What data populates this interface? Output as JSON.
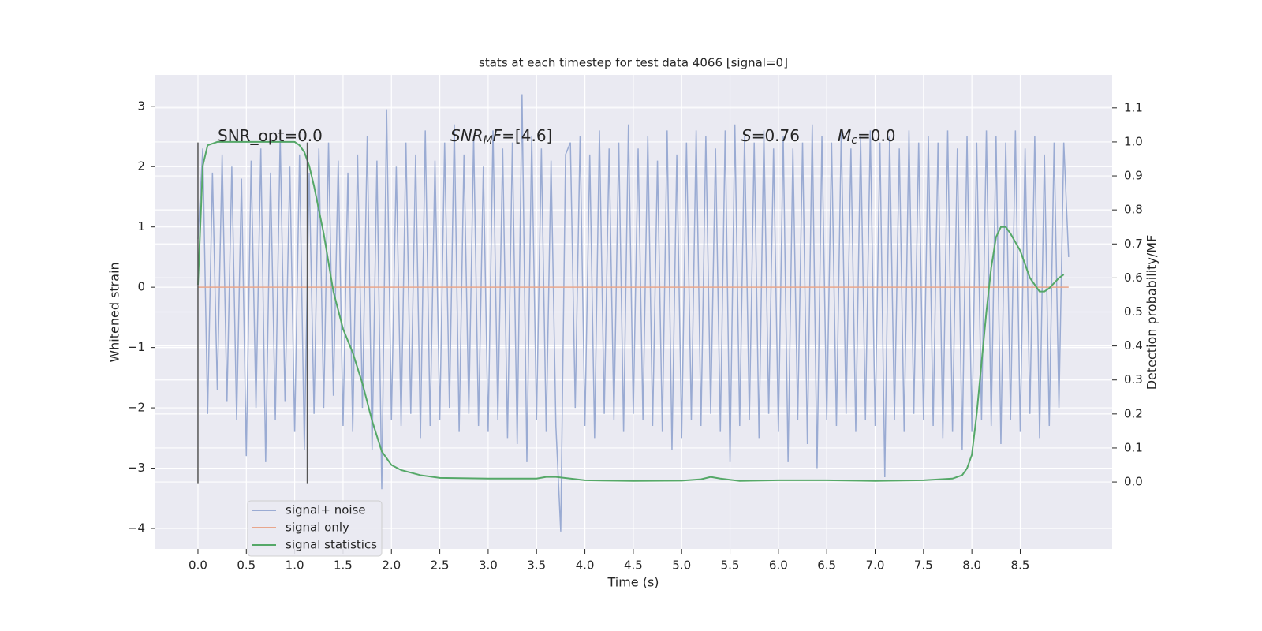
{
  "chart_data": {
    "type": "line",
    "title": "stats at each timestep for test data 4066 [signal=0]",
    "x_label": "Time (s)",
    "y_label": "Whitened strain",
    "y2_label": "Detection probability/MF",
    "xlim": [
      -0.44,
      9.45
    ],
    "xticks": [
      {
        "value": 0,
        "label": "0.0"
      },
      0.5,
      {
        "value": 1,
        "label": "1.0"
      },
      1.5,
      {
        "value": 2,
        "label": "2.0"
      },
      2.5,
      {
        "value": 3,
        "label": "3.0"
      },
      3.5,
      {
        "value": 4,
        "label": "4.0"
      },
      4.5,
      {
        "value": 5,
        "label": "5.0"
      },
      5.5,
      {
        "value": 6,
        "label": "6.0"
      },
      6.5,
      {
        "value": 7,
        "label": "7.0"
      },
      7.5,
      {
        "value": 8,
        "label": "8.0"
      },
      8.5
    ],
    "ylim": [
      -4.34,
      3.52
    ],
    "yticks": [
      {
        "value": -4,
        "label": "−4"
      },
      {
        "value": -3,
        "label": "−3"
      },
      {
        "value": -2,
        "label": "−2"
      },
      {
        "value": -1,
        "label": "−1"
      },
      0,
      1,
      2,
      3
    ],
    "y2lim": [
      -0.197,
      1.197
    ],
    "y2ticks": [
      {
        "value": 0,
        "label": "0.0"
      },
      0.1,
      0.2,
      0.3,
      0.4,
      0.5,
      0.6,
      0.7,
      0.8,
      0.9,
      {
        "value": 1,
        "label": "1.0"
      },
      1.1
    ],
    "grid": true,
    "legend": "lower left",
    "annotations": [
      [
        "SNR_opt=0.0"
      ],
      [
        "SNR",
        "M",
        "F",
        "=[4.6]"
      ],
      [
        "S",
        "=0.76"
      ],
      [
        "M",
        "c",
        "=0.0"
      ]
    ],
    "vlines": [
      0,
      1.13
    ],
    "vline_ylim": [
      -3.25,
      2.4
    ],
    "series": [
      {
        "name": "signal+ noise",
        "color": "#9aabd3",
        "x": [
          0,
          0.05,
          0.1,
          0.15,
          0.2,
          0.25,
          0.3,
          0.35,
          0.4,
          0.45,
          0.5,
          0.55,
          0.6,
          0.65,
          0.7,
          0.75,
          0.8,
          0.85,
          0.9,
          0.95,
          1,
          1.05,
          1.1,
          1.15,
          1.2,
          1.25,
          1.3,
          1.35,
          1.4,
          1.45,
          1.5,
          1.55,
          1.6,
          1.65,
          1.7,
          1.75,
          1.8,
          1.85,
          1.9,
          1.95,
          2,
          2.05,
          2.1,
          2.15,
          2.2,
          2.25,
          2.3,
          2.35,
          2.4,
          2.45,
          2.5,
          2.55,
          2.6,
          2.65,
          2.7,
          2.75,
          2.8,
          2.85,
          2.9,
          2.95,
          3,
          3.05,
          3.1,
          3.15,
          3.2,
          3.25,
          3.3,
          3.35,
          3.4,
          3.45,
          3.5,
          3.55,
          3.6,
          3.65,
          3.7,
          3.75,
          3.8,
          3.85,
          3.9,
          3.95,
          4,
          4.05,
          4.1,
          4.15,
          4.2,
          4.25,
          4.3,
          4.35,
          4.4,
          4.45,
          4.5,
          4.55,
          4.6,
          4.65,
          4.7,
          4.75,
          4.8,
          4.85,
          4.9,
          4.95,
          5,
          5.05,
          5.1,
          5.15,
          5.2,
          5.25,
          5.3,
          5.35,
          5.4,
          5.45,
          5.5,
          5.55,
          5.6,
          5.65,
          5.7,
          5.75,
          5.8,
          5.85,
          5.9,
          5.95,
          6,
          6.05,
          6.1,
          6.15,
          6.2,
          6.25,
          6.3,
          6.35,
          6.4,
          6.45,
          6.5,
          6.55,
          6.6,
          6.65,
          6.7,
          6.75,
          6.8,
          6.85,
          6.9,
          6.95,
          7,
          7.05,
          7.1,
          7.15,
          7.2,
          7.25,
          7.3,
          7.35,
          7.4,
          7.45,
          7.5,
          7.55,
          7.6,
          7.65,
          7.7,
          7.75,
          7.8,
          7.85,
          7.9,
          7.95,
          8,
          8.05,
          8.1,
          8.15,
          8.2,
          8.25,
          8.3,
          8.35,
          8.4,
          8.45,
          8.5,
          8.55,
          8.6,
          8.65,
          8.7,
          8.75,
          8.8,
          8.85,
          8.9,
          8.95,
          9
        ],
        "values": [
          0.8,
          2.3,
          -2.1,
          1.9,
          -1.7,
          2.2,
          -1.9,
          2.0,
          -2.2,
          1.8,
          -2.8,
          2.1,
          -2.0,
          2.3,
          -2.9,
          1.9,
          -2.2,
          2.5,
          -1.9,
          2.0,
          -2.4,
          2.2,
          -2.7,
          1.9,
          -2.1,
          2.3,
          -2.0,
          2.4,
          -1.8,
          2.1,
          -2.3,
          1.9,
          -2.4,
          2.2,
          -2.0,
          2.5,
          -2.7,
          2.1,
          -3.35,
          2.95,
          -2.2,
          2.0,
          -2.3,
          2.4,
          -2.1,
          2.2,
          -2.5,
          2.6,
          -2.3,
          2.1,
          -2.2,
          2.4,
          -2.0,
          2.7,
          -2.4,
          2.2,
          -2.1,
          2.5,
          -2.3,
          2.0,
          -2.4,
          2.6,
          -2.2,
          2.3,
          -2.5,
          2.4,
          -2.6,
          3.2,
          -2.9,
          2.5,
          -2.2,
          2.3,
          -2.4,
          2.1,
          -2.3,
          -4.05,
          2.2,
          2.4,
          -2.0,
          2.5,
          -2.3,
          2.2,
          -2.5,
          2.6,
          -2.1,
          2.3,
          -2.2,
          2.4,
          -2.4,
          2.7,
          -2.1,
          2.3,
          -2.2,
          2.5,
          -2.3,
          2.1,
          -2.4,
          2.6,
          -2.7,
          2.2,
          -2.5,
          2.4,
          -2.2,
          2.6,
          -2.3,
          2.5,
          -2.1,
          2.3,
          -2.4,
          2.6,
          -2.9,
          2.7,
          -2.3,
          2.5,
          -2.2,
          2.4,
          -2.5,
          2.6,
          -2.1,
          2.3,
          -2.4,
          2.5,
          -2.9,
          2.3,
          -2.2,
          2.4,
          -2.6,
          2.7,
          -3.0,
          2.5,
          -2.2,
          2.4,
          -2.3,
          2.6,
          -2.1,
          2.3,
          -2.4,
          2.5,
          -2.2,
          2.6,
          -2.3,
          2.4,
          -3.15,
          2.5,
          -2.2,
          2.3,
          -2.4,
          2.6,
          -2.1,
          2.4,
          -2.2,
          2.5,
          -2.3,
          2.4,
          -2.5,
          2.6,
          -2.4,
          2.3,
          -2.7,
          2.5,
          -2.4,
          2.4,
          -2.2,
          2.6,
          -2.3,
          2.5,
          -2.6,
          2.4,
          -2.2,
          2.6,
          -2.4,
          2.3,
          -2.1,
          2.5,
          -2.5,
          2.2,
          -2.3,
          2.4,
          -2.0,
          2.4,
          0.5
        ]
      },
      {
        "name": "signal only",
        "color": "#e8a68c",
        "x": [
          0,
          9
        ],
        "values": [
          0,
          0
        ]
      },
      {
        "name": "signal statistics",
        "color": "#55a868",
        "axis": "y2",
        "x": [
          0,
          0.05,
          0.1,
          0.2,
          0.4,
          0.6,
          0.8,
          1.0,
          1.05,
          1.1,
          1.15,
          1.2,
          1.3,
          1.4,
          1.5,
          1.6,
          1.7,
          1.8,
          1.9,
          2.0,
          2.1,
          2.3,
          2.5,
          3.0,
          3.5,
          3.6,
          3.7,
          4.0,
          4.5,
          5.0,
          5.2,
          5.3,
          5.4,
          5.6,
          6.0,
          6.5,
          7.0,
          7.5,
          7.8,
          7.9,
          7.95,
          8.0,
          8.05,
          8.1,
          8.15,
          8.2,
          8.25,
          8.3,
          8.35,
          8.4,
          8.5,
          8.6,
          8.7,
          8.75,
          8.8,
          8.9,
          8.95
        ],
        "values": [
          0.58,
          0.93,
          0.99,
          1.0,
          1.0,
          1.0,
          1.0,
          1.0,
          0.99,
          0.97,
          0.93,
          0.87,
          0.73,
          0.56,
          0.45,
          0.38,
          0.29,
          0.18,
          0.09,
          0.05,
          0.035,
          0.02,
          0.012,
          0.01,
          0.01,
          0.015,
          0.015,
          0.005,
          0.003,
          0.004,
          0.008,
          0.015,
          0.01,
          0.003,
          0.005,
          0.005,
          0.003,
          0.005,
          0.01,
          0.02,
          0.04,
          0.08,
          0.2,
          0.35,
          0.5,
          0.63,
          0.72,
          0.75,
          0.75,
          0.73,
          0.68,
          0.6,
          0.56,
          0.56,
          0.57,
          0.6,
          0.61
        ]
      }
    ]
  }
}
